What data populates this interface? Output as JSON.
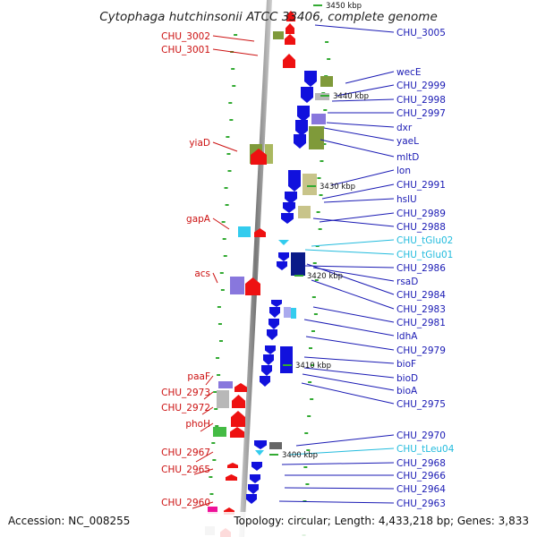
{
  "title": "Cytophaga hutchinsonii ATCC 33406, complete genome",
  "footer": {
    "accession": "Accession: NC_008255",
    "topology": "Topology: circular; Length: 4,433,218 bp; Genes: 3,833"
  },
  "colors": {
    "forward": "#ee1111",
    "reverse": "#1111dd",
    "trna": "#33ccee",
    "backbone": "#888888",
    "tick": "#33aa33"
  },
  "kbp_markers": [
    "3450 kbp",
    "3440 kbp",
    "3430 kbp",
    "3420 kbp",
    "3410 kbp",
    "3400 kbp"
  ],
  "left_labels": [
    {
      "text": "CHU_3002",
      "type": "forward"
    },
    {
      "text": "CHU_3001",
      "type": "forward"
    },
    {
      "text": "yiaD",
      "type": "forward"
    },
    {
      "text": "gapA",
      "type": "forward"
    },
    {
      "text": "acs",
      "type": "forward"
    },
    {
      "text": "paaF",
      "type": "forward"
    },
    {
      "text": "CHU_2973",
      "type": "forward"
    },
    {
      "text": "CHU_2972",
      "type": "forward"
    },
    {
      "text": "phoH",
      "type": "forward"
    },
    {
      "text": "CHU_2967",
      "type": "forward"
    },
    {
      "text": "CHU_2965",
      "type": "forward"
    },
    {
      "text": "CHU_2960",
      "type": "forward"
    }
  ],
  "right_labels": [
    {
      "text": "CHU_3005",
      "type": "reverse"
    },
    {
      "text": "wecE",
      "type": "reverse"
    },
    {
      "text": "CHU_2999",
      "type": "reverse"
    },
    {
      "text": "CHU_2998",
      "type": "reverse"
    },
    {
      "text": "CHU_2997",
      "type": "reverse"
    },
    {
      "text": "dxr",
      "type": "reverse"
    },
    {
      "text": "yaeL",
      "type": "reverse"
    },
    {
      "text": "mltD",
      "type": "reverse"
    },
    {
      "text": "lon",
      "type": "reverse"
    },
    {
      "text": "CHU_2991",
      "type": "reverse"
    },
    {
      "text": "hslU",
      "type": "reverse"
    },
    {
      "text": "CHU_2989",
      "type": "reverse"
    },
    {
      "text": "CHU_2988",
      "type": "reverse"
    },
    {
      "text": "CHU_tGlu02",
      "type": "trna"
    },
    {
      "text": "CHU_tGlu01",
      "type": "trna"
    },
    {
      "text": "CHU_2986",
      "type": "reverse"
    },
    {
      "text": "rsaD",
      "type": "reverse"
    },
    {
      "text": "CHU_2984",
      "type": "reverse"
    },
    {
      "text": "CHU_2983",
      "type": "reverse"
    },
    {
      "text": "CHU_2981",
      "type": "reverse"
    },
    {
      "text": "ldhA",
      "type": "reverse"
    },
    {
      "text": "CHU_2979",
      "type": "reverse"
    },
    {
      "text": "bioF",
      "type": "reverse"
    },
    {
      "text": "bioD",
      "type": "reverse"
    },
    {
      "text": "bioA",
      "type": "reverse"
    },
    {
      "text": "CHU_2975",
      "type": "reverse"
    },
    {
      "text": "CHU_2970",
      "type": "reverse"
    },
    {
      "text": "CHU_tLeu04",
      "type": "trna"
    },
    {
      "text": "CHU_2968",
      "type": "reverse"
    },
    {
      "text": "CHU_2966",
      "type": "reverse"
    },
    {
      "text": "CHU_2964",
      "type": "reverse"
    },
    {
      "text": "CHU_2963",
      "type": "reverse"
    }
  ]
}
